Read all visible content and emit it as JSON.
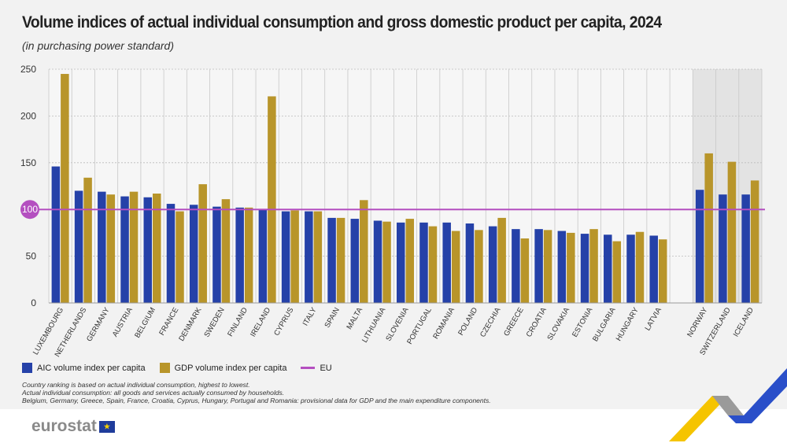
{
  "title": "Volume indices of actual individual consumption and gross domestic product per capita, 2024",
  "subtitle": "(in purchasing power standard)",
  "colors": {
    "aic": "#2541a8",
    "gdp": "#b8952a",
    "eu": "#b44fc0",
    "shade": "#e3e3e3"
  },
  "legend": {
    "aic": "AIC volume index per capita",
    "gdp": "GDP volume index per capita",
    "eu": "EU"
  },
  "notes": [
    "Country ranking is based on actual individual consumption, highest to lowest.",
    "Actual individual consumption: all goods and services actually consumed by households.",
    "Belgium, Germany, Greece, Spain, France, Croatia, Cyprus, Hungary, Portugal and Romania: provisional data for GDP and the main expenditure components."
  ],
  "logo": "eurostat",
  "chart_data": {
    "type": "bar",
    "title": "Volume indices of actual individual consumption and gross domestic product per capita, 2024",
    "ylim": [
      0,
      250
    ],
    "yticks": [
      0,
      50,
      100,
      150,
      200,
      250
    ],
    "grid": true,
    "legend_position": "bottom-left",
    "reference_line": {
      "name": "EU",
      "value": 100
    },
    "categories": [
      "LUXEMBOURG",
      "NETHERLANDS",
      "GERMANY",
      "AUSTRIA",
      "BELGIUM",
      "FRANCE",
      "DENMARK",
      "SWEDEN",
      "FINLAND",
      "IRELAND",
      "CYPRUS",
      "ITALY",
      "SPAIN",
      "MALTA",
      "LITHUANIA",
      "SLOVENIA",
      "PORTUGAL",
      "ROMANIA",
      "POLAND",
      "CZECHIA",
      "GREECE",
      "CROATIA",
      "SLOVAKIA",
      "ESTONIA",
      "BULGARIA",
      "HUNGARY",
      "LATVIA",
      "",
      "NORWAY",
      "SWITZERLAND",
      "ICELAND"
    ],
    "shaded_categories": [
      "NORWAY",
      "SWITZERLAND",
      "ICELAND"
    ],
    "series": [
      {
        "name": "AIC volume index per capita",
        "values": [
          146,
          120,
          119,
          114,
          113,
          106,
          105,
          103,
          102,
          100,
          98,
          98,
          91,
          90,
          88,
          86,
          86,
          86,
          85,
          82,
          79,
          79,
          77,
          74,
          73,
          73,
          72,
          null,
          121,
          116,
          116
        ]
      },
      {
        "name": "GDP volume index per capita",
        "values": [
          245,
          134,
          116,
          119,
          117,
          98,
          127,
          111,
          102,
          221,
          99,
          98,
          91,
          110,
          87,
          90,
          82,
          77,
          78,
          91,
          69,
          78,
          75,
          79,
          66,
          76,
          68,
          null,
          160,
          151,
          131
        ]
      }
    ]
  }
}
